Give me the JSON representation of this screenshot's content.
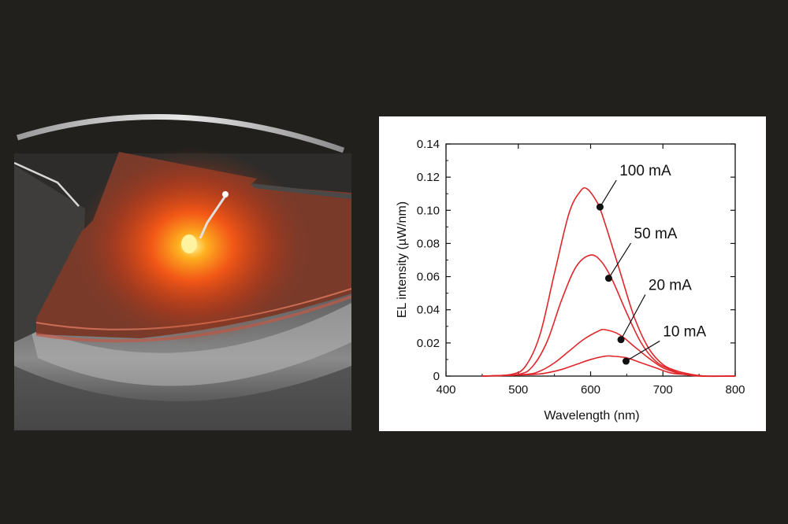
{
  "colors": {
    "background": "#22201d",
    "series": "#e0262b",
    "glow": "#ff6a1a",
    "photo_sample": "#8c4a38"
  },
  "photo": {
    "description_icon": "glowing-led-sample-photo"
  },
  "chart_data": {
    "type": "line",
    "title": "",
    "xlabel": "Wavelength (nm)",
    "ylabel": "EL intensity (µW/nm)",
    "xlim": [
      400,
      800
    ],
    "ylim": [
      0,
      0.14
    ],
    "xticks": [
      "400",
      "500",
      "600",
      "700",
      "800"
    ],
    "yticks": [
      "0",
      "0.02",
      "0.04",
      "0.06",
      "0.08",
      "0.10",
      "0.12",
      "0.14"
    ],
    "grid": false,
    "legend": "none",
    "series": [
      {
        "name": "100 mA",
        "x": [
          450,
          490,
          510,
          530,
          550,
          570,
          585,
          595,
          610,
          620,
          640,
          660,
          680,
          700,
          720,
          740,
          760,
          800
        ],
        "y": [
          0,
          0.001,
          0.006,
          0.025,
          0.062,
          0.098,
          0.111,
          0.113,
          0.104,
          0.092,
          0.064,
          0.036,
          0.017,
          0.007,
          0.003,
          0.001,
          0,
          0
        ],
        "annotation": {
          "x": 613,
          "y": 0.102,
          "label_x": 640,
          "label_y": 0.121
        }
      },
      {
        "name": "50 mA",
        "x": [
          450,
          500,
          520,
          540,
          560,
          580,
          600,
          615,
          630,
          650,
          670,
          690,
          710,
          730,
          760,
          800
        ],
        "y": [
          0,
          0.001,
          0.006,
          0.021,
          0.046,
          0.066,
          0.073,
          0.069,
          0.058,
          0.038,
          0.02,
          0.009,
          0.004,
          0.001,
          0,
          0
        ],
        "annotation": {
          "x": 625,
          "y": 0.059,
          "label_x": 660,
          "label_y": 0.083
        }
      },
      {
        "name": "20 mA",
        "x": [
          450,
          510,
          530,
          550,
          570,
          590,
          610,
          620,
          640,
          660,
          680,
          700,
          720,
          750,
          800
        ],
        "y": [
          0,
          0.001,
          0.003,
          0.008,
          0.015,
          0.022,
          0.027,
          0.028,
          0.025,
          0.018,
          0.011,
          0.005,
          0.002,
          0,
          0
        ],
        "annotation": {
          "x": 642,
          "y": 0.022,
          "label_x": 680,
          "label_y": 0.052
        }
      },
      {
        "name": "10 mA",
        "x": [
          450,
          520,
          540,
          560,
          580,
          600,
          620,
          630,
          650,
          670,
          690,
          710,
          730,
          760,
          800
        ],
        "y": [
          0,
          0.001,
          0.002,
          0.004,
          0.007,
          0.01,
          0.012,
          0.012,
          0.011,
          0.008,
          0.005,
          0.002,
          0.001,
          0,
          0
        ],
        "annotation": {
          "x": 649,
          "y": 0.009,
          "label_x": 700,
          "label_y": 0.024
        }
      }
    ]
  }
}
